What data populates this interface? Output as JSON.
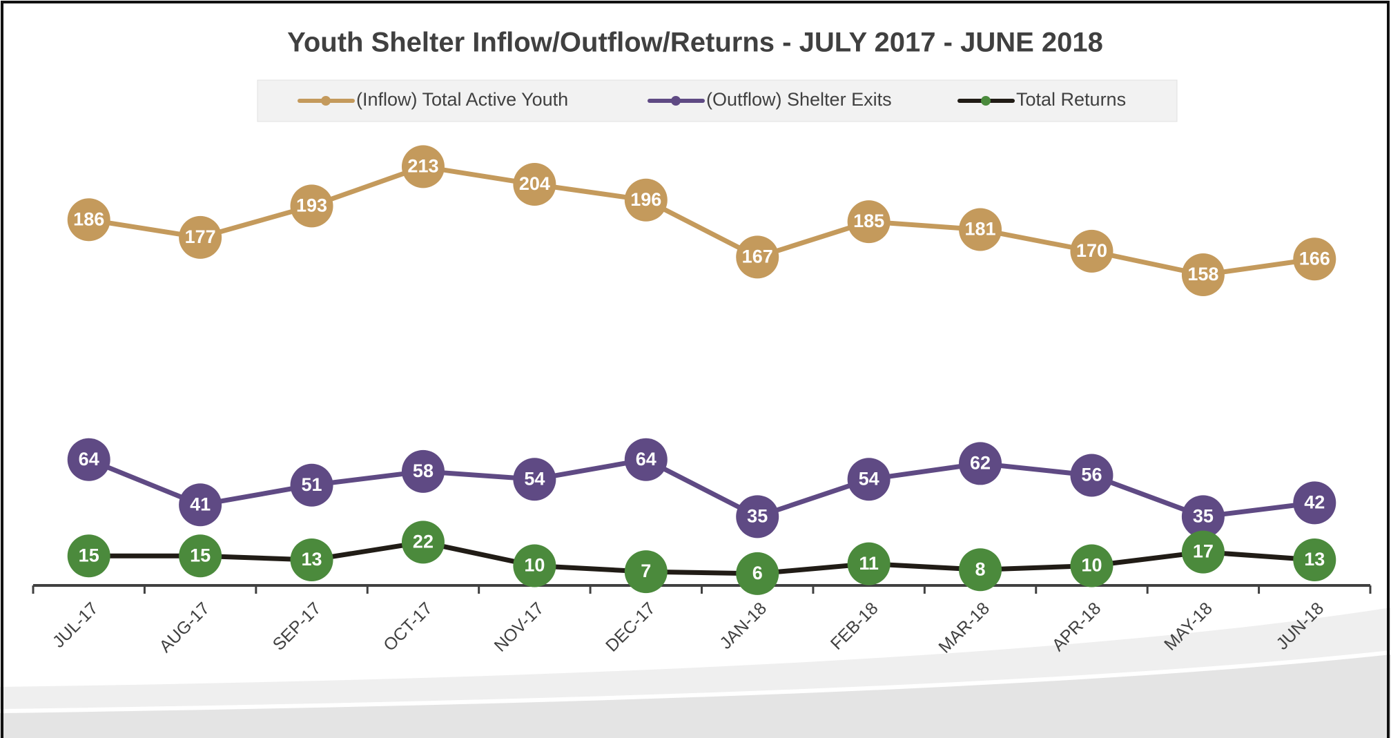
{
  "chart_data": {
    "type": "line",
    "title": "Youth Shelter Inflow/Outflow/Returns  -  JULY 2017 - JUNE 2018",
    "categories": [
      "JUL-17",
      "AUG-17",
      "SEP-17",
      "OCT-17",
      "NOV-17",
      "DEC-17",
      "JAN-18",
      "FEB-18",
      "MAR-18",
      "APR-18",
      "MAY-18",
      "JUN-18"
    ],
    "series": [
      {
        "name": "(Inflow) Total Active Youth",
        "color": "#c49a5c",
        "marker_color": "#c49a5c",
        "values": [
          186,
          177,
          193,
          213,
          204,
          196,
          167,
          185,
          181,
          170,
          158,
          166
        ]
      },
      {
        "name": "(Outflow) Shelter Exits",
        "color": "#5f4a84",
        "marker_color": "#5f4a84",
        "values": [
          64,
          41,
          51,
          58,
          54,
          64,
          35,
          54,
          62,
          56,
          35,
          42
        ]
      },
      {
        "name": "Total Returns",
        "color": "#211c16",
        "marker_color": "#4b8a3c",
        "values": [
          15,
          15,
          13,
          22,
          10,
          7,
          6,
          11,
          8,
          10,
          17,
          13
        ]
      }
    ],
    "ylim": [
      0,
      250
    ],
    "legend": "top",
    "data_labels": true
  }
}
